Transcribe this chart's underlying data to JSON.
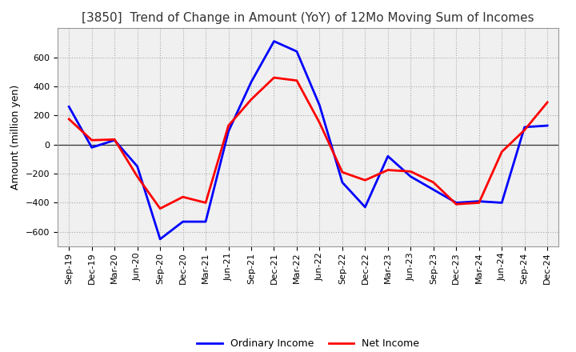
{
  "title": "[3850]  Trend of Change in Amount (YoY) of 12Mo Moving Sum of Incomes",
  "ylabel": "Amount (million yen)",
  "background_color": "#ffffff",
  "plot_bg_color": "#f0f0f0",
  "grid_color": "#aaaaaa",
  "x_labels": [
    "Sep-19",
    "Dec-19",
    "Mar-20",
    "Jun-20",
    "Sep-20",
    "Dec-20",
    "Mar-21",
    "Jun-21",
    "Sep-21",
    "Dec-21",
    "Mar-22",
    "Jun-22",
    "Sep-22",
    "Dec-22",
    "Mar-23",
    "Jun-23",
    "Sep-23",
    "Dec-23",
    "Mar-24",
    "Jun-24",
    "Sep-24",
    "Dec-24"
  ],
  "ordinary_income": [
    260,
    -20,
    30,
    -150,
    -650,
    -530,
    -530,
    90,
    430,
    710,
    640,
    270,
    -260,
    -430,
    -80,
    -220,
    -310,
    -400,
    -390,
    -400,
    120,
    130
  ],
  "net_income": [
    175,
    30,
    35,
    -220,
    -440,
    -360,
    -400,
    130,
    310,
    460,
    440,
    150,
    -190,
    -245,
    -175,
    -185,
    -260,
    -410,
    -400,
    -50,
    100,
    290
  ],
  "ordinary_income_color": "#0000ff",
  "net_income_color": "#ff0000",
  "ylim": [
    -700,
    800
  ],
  "yticks": [
    -600,
    -400,
    -200,
    0,
    200,
    400,
    600
  ],
  "line_width": 2.0,
  "title_fontsize": 11,
  "ylabel_fontsize": 9,
  "legend_fontsize": 9,
  "tick_fontsize": 8
}
